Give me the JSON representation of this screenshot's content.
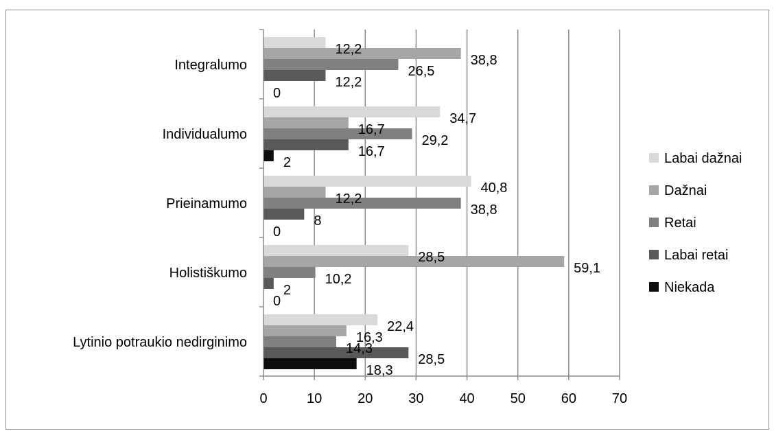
{
  "chart_data": {
    "type": "bar",
    "orientation": "horizontal",
    "categories": [
      "Integralumo",
      "Individualumo",
      "Prieinamumo",
      "Holistiškumo",
      "Lytinio potraukio nedirginimo"
    ],
    "series": [
      {
        "name": "Labai dažnai",
        "color": "#d9d9d9",
        "values": [
          12.2,
          34.7,
          40.8,
          28.5,
          22.4
        ],
        "labels": [
          "12,2",
          "34,7",
          "40,8",
          "28,5",
          "22,4"
        ]
      },
      {
        "name": "Dažnai",
        "color": "#a6a6a6",
        "values": [
          38.8,
          16.7,
          12.2,
          59.1,
          16.3
        ],
        "labels": [
          "38,8",
          "16,7",
          "12,2",
          "59,1",
          "16,3"
        ]
      },
      {
        "name": "Retai",
        "color": "#808080",
        "values": [
          26.5,
          29.2,
          38.8,
          10.2,
          14.3
        ],
        "labels": [
          "26,5",
          "29,2",
          "38,8",
          "10,2",
          "14,3"
        ]
      },
      {
        "name": "Labai retai",
        "color": "#595959",
        "values": [
          12.2,
          16.7,
          8,
          2,
          28.5
        ],
        "labels": [
          "12,2",
          "16,7",
          "8",
          "2",
          "28,5"
        ]
      },
      {
        "name": "Niekada",
        "color": "#0d0d0d",
        "values": [
          0,
          2,
          0,
          0,
          18.3
        ],
        "labels": [
          "0",
          "2",
          "0",
          "0",
          "18,3"
        ]
      }
    ],
    "xlim": [
      0,
      70
    ],
    "xticks": [
      0,
      10,
      20,
      30,
      40,
      50,
      60,
      70
    ],
    "title": "",
    "xlabel": "",
    "ylabel": "",
    "grid": "vertical",
    "legend_position": "right"
  }
}
